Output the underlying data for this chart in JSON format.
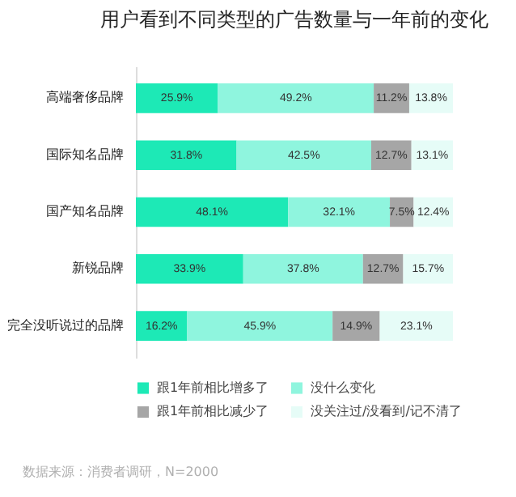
{
  "chart_data": {
    "type": "bar",
    "orientation": "horizontal",
    "stacked": true,
    "title": "用户看到不同类型的广告数量与一年前的变化",
    "categories": [
      "高端奢侈品牌",
      "国际知名品牌",
      "国产知名品牌",
      "新锐品牌",
      "完全没听说过的品牌"
    ],
    "series": [
      {
        "name": "跟1年前相比增多了",
        "color": "#1de9b6",
        "values": [
          25.9,
          31.8,
          48.1,
          33.9,
          16.2
        ],
        "value_labels": [
          "25.9%",
          "31.8%",
          "48.1%",
          "33.9%",
          "16.2%"
        ]
      },
      {
        "name": "没什么变化",
        "color": "#8ff5de",
        "values": [
          49.2,
          42.5,
          32.1,
          37.8,
          45.9
        ],
        "value_labels": [
          "49.2%",
          "42.5%",
          "32.1%",
          "37.8%",
          "45.9%"
        ]
      },
      {
        "name": "跟1年前相比减少了",
        "color": "#a6a6a6",
        "values": [
          11.2,
          12.7,
          7.5,
          12.7,
          14.9
        ],
        "value_labels": [
          "11.2%",
          "12.7%",
          "7.5%",
          "12.7%",
          "14.9%"
        ]
      },
      {
        "name": "没关注过/没看到/记不清了",
        "color": "#e6fcf7",
        "values": [
          13.8,
          13.1,
          12.4,
          15.7,
          23.1
        ],
        "value_labels": [
          "13.8%",
          "13.1%",
          "12.4%",
          "15.7%",
          "23.1%"
        ]
      }
    ],
    "legend": "bottom",
    "annotations": [
      "数据来源：消费者调研，N=2000"
    ]
  }
}
